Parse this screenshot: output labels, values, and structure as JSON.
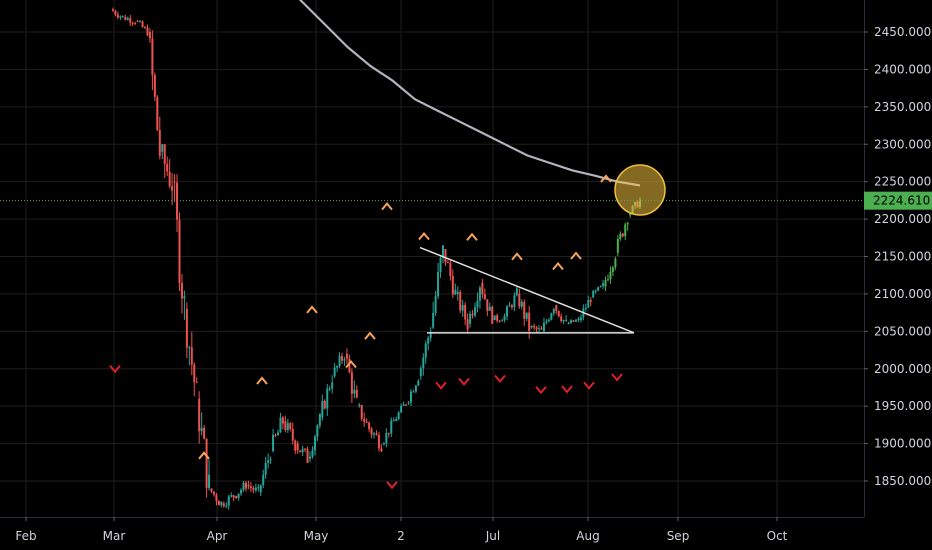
{
  "colors": {
    "background": "#000000",
    "bull": "#26a69a",
    "bull_bright": "#4caf50",
    "bear": "#ef5350",
    "sma": "#b2b5be",
    "grid": "#1e1e1e",
    "up_marker": "#f7a35c",
    "down_marker": "#e0202a",
    "price_line": "#4caf50",
    "highlight": "#f0c040",
    "triangle": "#e0e0e0"
  },
  "chart_data": {
    "type": "candlestick",
    "title": "",
    "xlabel": "",
    "ylabel": "",
    "ylim": [
      1805,
      2485
    ],
    "x_ticks": [
      "Feb",
      "Mar",
      "Apr",
      "May",
      "2",
      "Jul",
      "Aug",
      "Sep",
      "Oct"
    ],
    "y_ticks": [
      "2450.000",
      "2400.000",
      "2350.000",
      "2300.000",
      "2250.000",
      "2200.000",
      "2150.000",
      "2100.000",
      "2050.000",
      "2000.000",
      "1950.000",
      "1900.000",
      "1850.000"
    ],
    "y_tick_values": [
      2450,
      2400,
      2350,
      2300,
      2250,
      2200,
      2150,
      2100,
      2050,
      2000,
      1950,
      1900,
      1850
    ],
    "current_price": 2224.61,
    "current_price_label": "2224.610",
    "candles_ohlc_by_week": [
      [
        2480,
        2490,
        2460,
        2470
      ],
      [
        2470,
        2485,
        2455,
        2465
      ],
      [
        2465,
        2470,
        2440,
        2450
      ],
      [
        2450,
        2455,
        2280,
        2290
      ],
      [
        2290,
        2300,
        2150,
        2250
      ],
      [
        2250,
        2260,
        2060,
        2080
      ],
      [
        2080,
        2090,
        1930,
        1960
      ],
      [
        1960,
        1970,
        1810,
        1840
      ],
      [
        1840,
        1850,
        1800,
        1820
      ],
      [
        1820,
        1840,
        1800,
        1830
      ],
      [
        1830,
        1850,
        1810,
        1845
      ],
      [
        1845,
        1860,
        1820,
        1835
      ],
      [
        1835,
        1900,
        1830,
        1890
      ],
      [
        1890,
        1950,
        1870,
        1930
      ],
      [
        1930,
        1945,
        1880,
        1900
      ],
      [
        1900,
        1920,
        1860,
        1880
      ],
      [
        1880,
        1940,
        1875,
        1935
      ],
      [
        1935,
        2000,
        1930,
        1990
      ],
      [
        1990,
        2040,
        1985,
        2020
      ],
      [
        2020,
        2030,
        1940,
        1950
      ],
      [
        1950,
        1960,
        1905,
        1920
      ],
      [
        1920,
        1940,
        1880,
        1900
      ],
      [
        1900,
        1935,
        1895,
        1930
      ],
      [
        1930,
        1960,
        1925,
        1955
      ],
      [
        1955,
        1995,
        1950,
        1990
      ],
      [
        1990,
        2060,
        1985,
        2055
      ],
      [
        2055,
        2165,
        2050,
        2160
      ],
      [
        2160,
        2165,
        2090,
        2100
      ],
      [
        2100,
        2110,
        2045,
        2060
      ],
      [
        2060,
        2130,
        2055,
        2115
      ],
      [
        2115,
        2120,
        2060,
        2065
      ],
      [
        2065,
        2085,
        2055,
        2070
      ],
      [
        2070,
        2110,
        2065,
        2100
      ],
      [
        2100,
        2110,
        2040,
        2055
      ],
      [
        2055,
        2065,
        2030,
        2050
      ],
      [
        2050,
        2090,
        2045,
        2085
      ],
      [
        2085,
        2090,
        2045,
        2060
      ],
      [
        2060,
        2070,
        2050,
        2065
      ],
      [
        2065,
        2100,
        2060,
        2095
      ],
      [
        2095,
        2120,
        2085,
        2110
      ],
      [
        2110,
        2160,
        2100,
        2155
      ],
      [
        2155,
        2210,
        2150,
        2205
      ],
      [
        2205,
        2230,
        2195,
        2225
      ]
    ],
    "sma_series": [
      2520,
      2490,
      2460,
      2430,
      2405,
      2385,
      2360,
      2345,
      2330,
      2315,
      2300,
      2285,
      2275,
      2265,
      2258,
      2250,
      2245
    ],
    "triangle": {
      "upper_start": 2162,
      "upper_end": 2048,
      "lower": 2048
    },
    "up_markers_values": [
      1885,
      1985,
      2080,
      2045,
      2007,
      2178,
      2218,
      2177,
      2151,
      2138,
      2152,
      2255
    ],
    "down_markers_values": [
      2000,
      1845,
      1978,
      1983,
      1987,
      1972,
      1973,
      1978,
      1989
    ]
  }
}
